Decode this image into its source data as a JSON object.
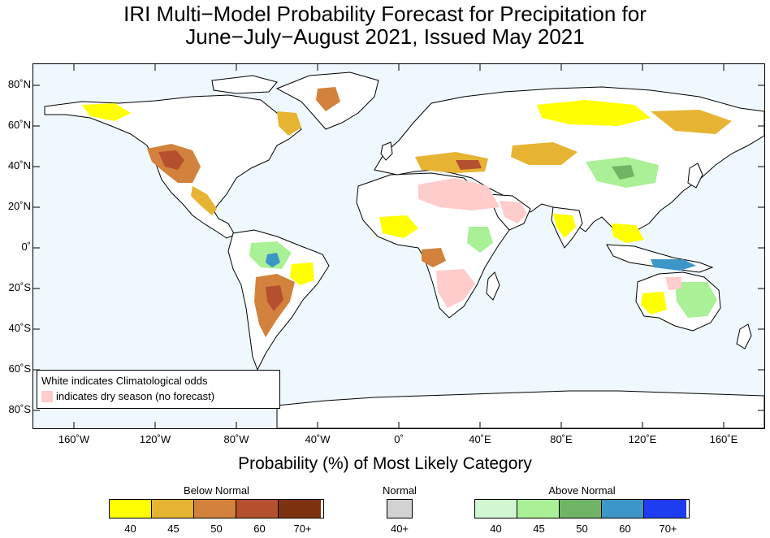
{
  "title_line1": "IRI Multi−Model Probability Forecast for Precipitation for",
  "title_line2": "June−July−August 2021, Issued May 2021",
  "axis_title": "Probability (%) of Most Likely Category",
  "lat_labels": [
    "80˚N",
    "60˚N",
    "40˚N",
    "20˚N",
    "0˚",
    "20˚S",
    "40˚S",
    "60˚S",
    "80˚S"
  ],
  "lon_labels": [
    "160˚W",
    "120˚W",
    "80˚W",
    "40˚W",
    "0˚",
    "40˚E",
    "80˚E",
    "120˚E",
    "160˚E"
  ],
  "note": {
    "line1": "White indicates Climatological odds",
    "line2": "indicates dry season (no forecast)",
    "swatch_color": "#ffcccc"
  },
  "colors": {
    "ocean": "#eef8fd",
    "land": "#ffffff",
    "coast": "#000000"
  },
  "legend": {
    "below": {
      "title": "Below Normal",
      "colors": [
        "#ffff00",
        "#e6b432",
        "#d2823c",
        "#b4502d",
        "#7d320f"
      ],
      "labels": [
        "40",
        "45",
        "50",
        "60",
        "70+"
      ]
    },
    "normal": {
      "title": "Normal",
      "colors": [
        "#d2d2d2"
      ],
      "labels": [
        "40+"
      ]
    },
    "above": {
      "title": "Above Normal",
      "colors": [
        "#d2f5d2",
        "#aaf096",
        "#6eb464",
        "#3c96c8",
        "#1e3cf0"
      ],
      "labels": [
        "40",
        "45",
        "50",
        "60",
        "70+"
      ]
    }
  }
}
